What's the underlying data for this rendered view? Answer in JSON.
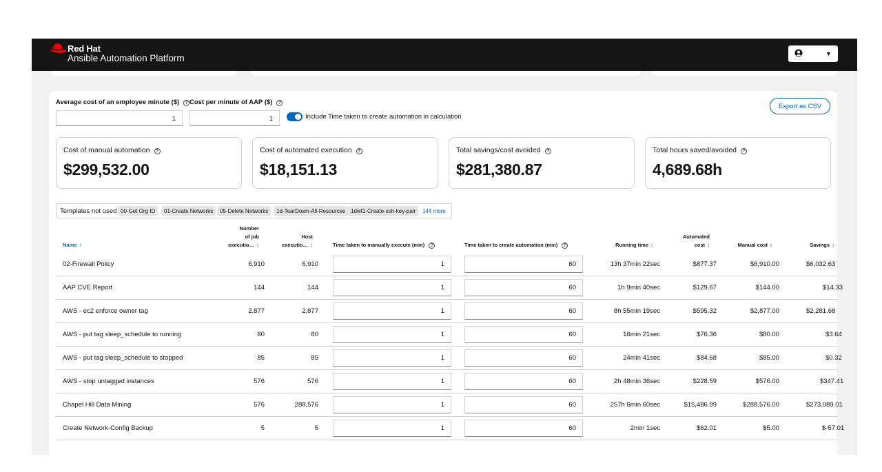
{
  "masthead": {
    "brand_line1": "Red Hat",
    "brand_line2": "Ansible Automation Platform",
    "user_icon": "user-circle-icon",
    "dropdown_icon": "caret-down-icon"
  },
  "colors": {
    "accent": "#0066cc",
    "masthead": "#151515",
    "logo_red": "#ee0000"
  },
  "controls": {
    "employee_cost_label": "Average cost of an employee minute ($)",
    "employee_cost_value": "1",
    "aap_cost_label": "Cost per minute of AAP ($)",
    "aap_cost_value": "1",
    "toggle_label": "Include Time taken to create automation in calculation",
    "toggle_on": true,
    "export_label": "Export as CSV"
  },
  "cards": [
    {
      "title": "Cost of manual automation",
      "value": "$299,532.00"
    },
    {
      "title": "Cost of automated execution",
      "value": "$18,151.13"
    },
    {
      "title": "Total savings/cost avoided",
      "value": "$281,380.87"
    },
    {
      "title": "Total hours saved/avoided",
      "value": "4,689.68h"
    }
  ],
  "templates_not_used": {
    "label": "Templates not used",
    "chips": [
      "00-Get Org ID",
      "01-Create Networks",
      "05-Delete Networks",
      "1d-TearDown-All-Resources",
      "1dwf1-Create-ssh-key-pair"
    ],
    "more": "144 more"
  },
  "table": {
    "headers": {
      "name": "Name",
      "job_exec_1": "Number",
      "job_exec_2": "of job",
      "job_exec_3": "executio…",
      "host_exec_1": "Host",
      "host_exec_2": "executio…",
      "manual_time": "Time taken to manually execute (min)",
      "create_time": "Time taken to create automation (min)",
      "running_time": "Running time",
      "automated_cost_1": "Automated",
      "automated_cost_2": "cost",
      "manual_cost": "Manual cost",
      "savings": "Savings"
    },
    "rows": [
      {
        "name": "02-Firewall Policy",
        "jobs": "6,910",
        "hosts": "6,910",
        "manual_min": "1",
        "create_min": "60",
        "running": "13h 37min 22sec",
        "auto_cost": "$877.37",
        "manual_cost": "$6,910.00",
        "savings": "$6,032.63"
      },
      {
        "name": "AAP CVE Report",
        "jobs": "144",
        "hosts": "144",
        "manual_min": "1",
        "create_min": "60",
        "running": "1h 9min 40sec",
        "auto_cost": "$129.67",
        "manual_cost": "$144.00",
        "savings": "$14.33"
      },
      {
        "name": "AWS - ec2 enforce owner tag",
        "jobs": "2,877",
        "hosts": "2,877",
        "manual_min": "1",
        "create_min": "60",
        "running": "8h 55min 19sec",
        "auto_cost": "$595.32",
        "manual_cost": "$2,877.00",
        "savings": "$2,281.68"
      },
      {
        "name": "AWS - put tag sleep_schedule to running",
        "jobs": "80",
        "hosts": "80",
        "manual_min": "1",
        "create_min": "60",
        "running": "16min 21sec",
        "auto_cost": "$76.36",
        "manual_cost": "$80.00",
        "savings": "$3.64"
      },
      {
        "name": "AWS - put tag sleep_schedule to stopped",
        "jobs": "85",
        "hosts": "85",
        "manual_min": "1",
        "create_min": "60",
        "running": "24min 41sec",
        "auto_cost": "$84.68",
        "manual_cost": "$85.00",
        "savings": "$0.32"
      },
      {
        "name": "AWS - stop untagged instances",
        "jobs": "576",
        "hosts": "576",
        "manual_min": "1",
        "create_min": "60",
        "running": "2h 48min 36sec",
        "auto_cost": "$228.59",
        "manual_cost": "$576.00",
        "savings": "$347.41"
      },
      {
        "name": "Chapel Hill Data Mining",
        "jobs": "576",
        "hosts": "288,576",
        "manual_min": "1",
        "create_min": "60",
        "running": "257h 6min 60sec",
        "auto_cost": "$15,486.99",
        "manual_cost": "$288,576.00",
        "savings": "$273,089.01"
      },
      {
        "name": "Create Network-Config Backup",
        "jobs": "5",
        "hosts": "5",
        "manual_min": "1",
        "create_min": "60",
        "running": "2min 1sec",
        "auto_cost": "$62.01",
        "manual_cost": "$5.00",
        "savings": "$-57.01"
      }
    ]
  }
}
